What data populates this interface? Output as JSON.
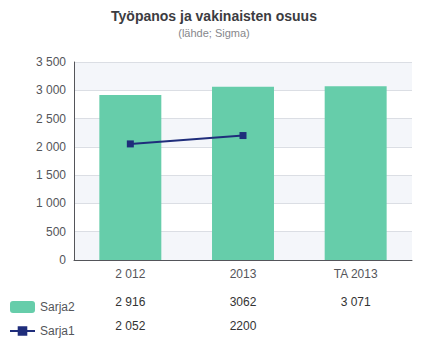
{
  "chart_data": {
    "type": "bar",
    "title": "Työpanos ja vakinaisten osuus",
    "subtitle": "(lähde; Sigma)",
    "categories": [
      "2 012",
      "2013",
      "TA 2013"
    ],
    "series": [
      {
        "name": "Sarja2",
        "type": "bar",
        "color": "#66CDAA",
        "values": [
          2916,
          3062,
          3071
        ],
        "value_labels": [
          "2 916",
          "3062",
          "3 071"
        ]
      },
      {
        "name": "Sarja1",
        "type": "line",
        "color": "#1F2D7B",
        "marker": "square",
        "values": [
          2052,
          2200,
          null
        ],
        "value_labels": [
          "2 052",
          "2200",
          null
        ]
      }
    ],
    "ylim": [
      0,
      3500
    ],
    "yticks": [
      0,
      500,
      {
        "value": 1000,
        "label": "1 000"
      },
      {
        "value": 1500,
        "label": "1 500"
      },
      {
        "value": 2000,
        "label": "2 000"
      },
      {
        "value": 2500,
        "label": "2 500"
      },
      {
        "value": 3000,
        "label": "3 000"
      },
      {
        "value": 3500,
        "label": "3 500"
      }
    ],
    "grid": true,
    "legend": "bottom left"
  }
}
